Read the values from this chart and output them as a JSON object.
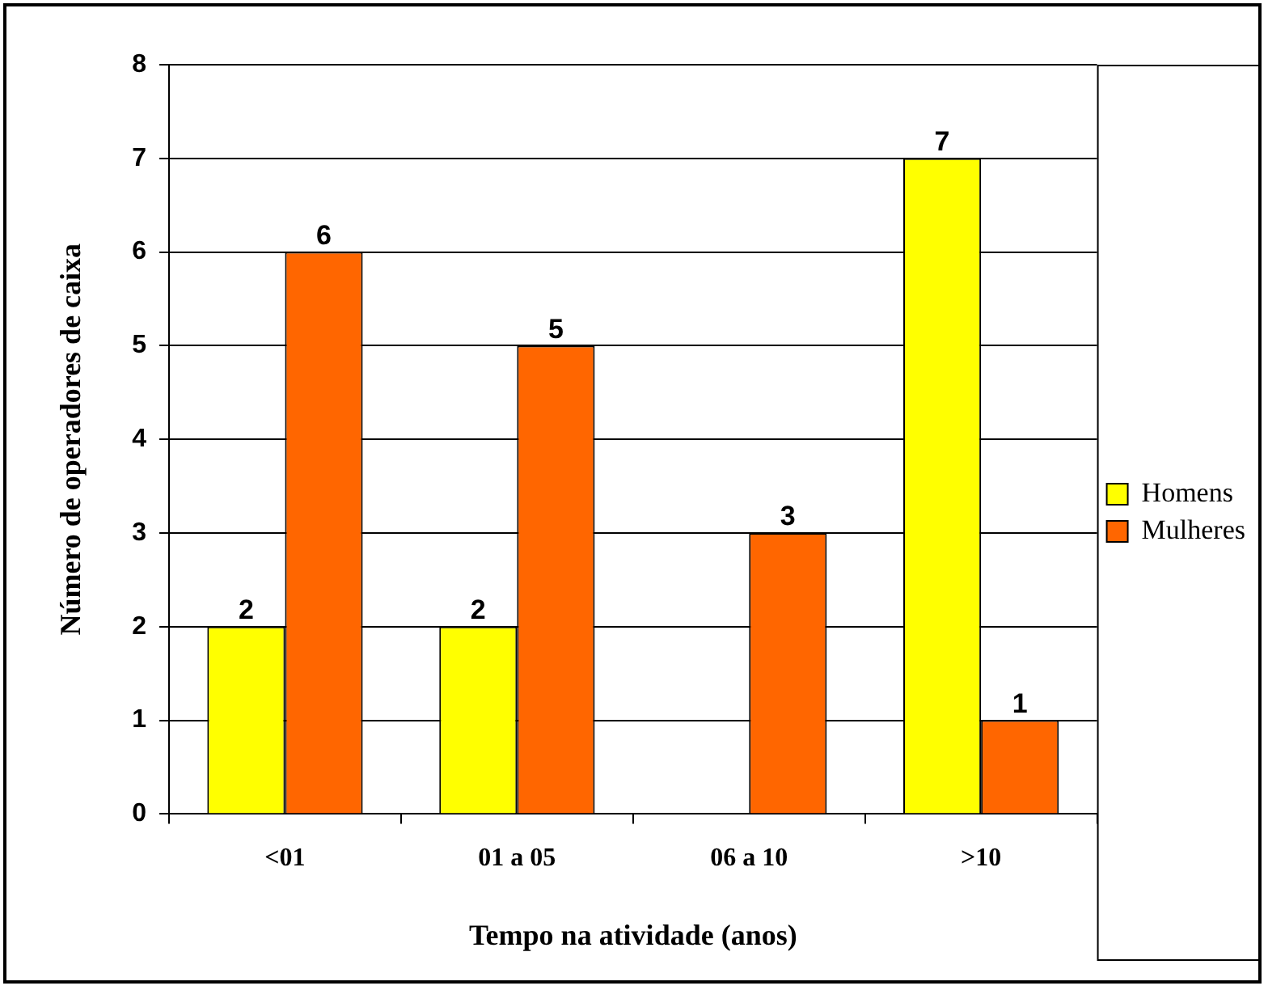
{
  "chart_data": {
    "type": "bar",
    "xlabel": "Tempo na atividade (anos)",
    "ylabel": "Número de operadores de caixa",
    "categories": [
      "<01",
      "01 a 05",
      "06 a 10",
      ">10"
    ],
    "series": [
      {
        "name": "Homens",
        "color": "#ffff00",
        "values": [
          2,
          2,
          null,
          7
        ],
        "value_labels": [
          "2",
          "2",
          null,
          "7"
        ]
      },
      {
        "name": "Mulheres",
        "color": "#ff6600",
        "values": [
          6,
          5,
          3,
          1
        ],
        "value_labels": [
          "6",
          "5",
          "3",
          "1"
        ]
      }
    ],
    "ylim": [
      0,
      8
    ],
    "yticks": [
      0,
      1,
      2,
      3,
      4,
      5,
      6,
      7,
      8
    ],
    "grid": "y",
    "legend": "right"
  }
}
